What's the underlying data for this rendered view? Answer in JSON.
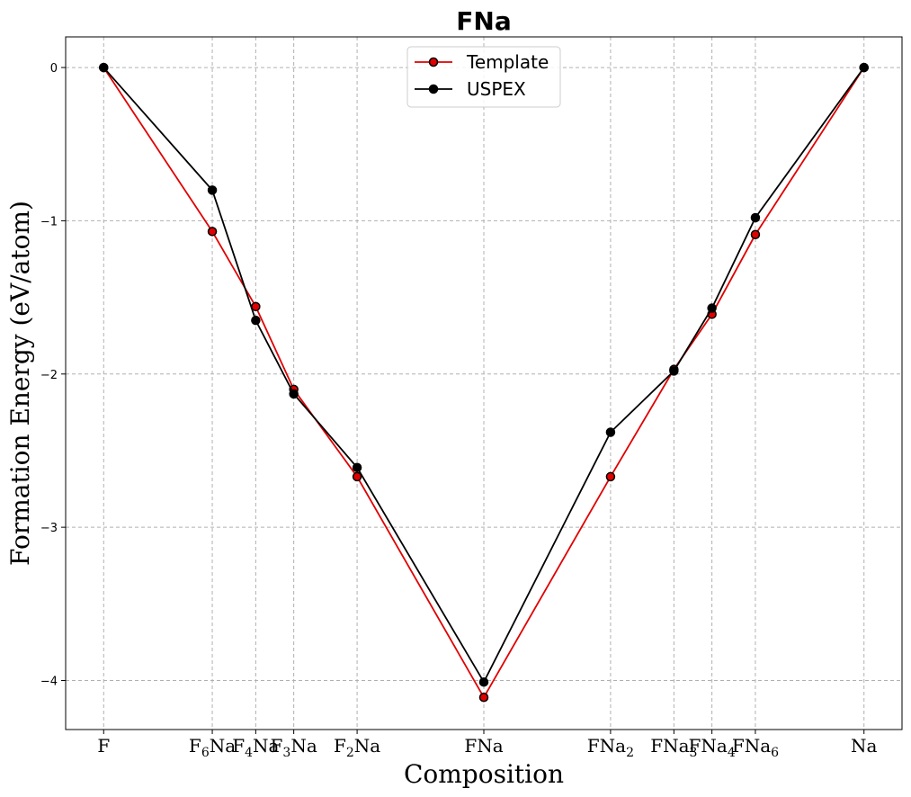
{
  "chart_data": {
    "type": "line",
    "title": "FNa",
    "xlabel": "Composition",
    "ylabel": "Formation Energy (eV/atom)",
    "x": [
      0,
      0.142857,
      0.2,
      0.25,
      0.333333,
      0.5,
      0.666667,
      0.75,
      0.8,
      0.857143,
      1.0
    ],
    "categories": [
      {
        "base": "F",
        "sub": "",
        "tail": ""
      },
      {
        "base": "F",
        "sub": "6",
        "tail": "Na"
      },
      {
        "base": "F",
        "sub": "4",
        "tail": "Na"
      },
      {
        "base": "F",
        "sub": "3",
        "tail": "Na"
      },
      {
        "base": "F",
        "sub": "2",
        "tail": "Na"
      },
      {
        "base": "FNa",
        "sub": "",
        "tail": ""
      },
      {
        "base": "FNa",
        "sub": "2",
        "tail": ""
      },
      {
        "base": "FNa",
        "sub": "3",
        "tail": ""
      },
      {
        "base": "FNa",
        "sub": "4",
        "tail": ""
      },
      {
        "base": "FNa",
        "sub": "6",
        "tail": ""
      },
      {
        "base": "Na",
        "sub": "",
        "tail": ""
      }
    ],
    "xlim": [
      -0.05,
      1.05
    ],
    "ylim": [
      -4.32,
      0.2
    ],
    "yticks": [
      0,
      -1,
      -2,
      -3,
      -4
    ],
    "ytick_labels": [
      "0",
      "−1",
      "−2",
      "−3",
      "−4"
    ],
    "grid": true,
    "legend": "top-center",
    "series": [
      {
        "name": "Template",
        "color": "#e00000",
        "marker_face": "#e00000",
        "values": [
          0,
          -1.07,
          -1.56,
          -2.1,
          -2.67,
          -4.11,
          -2.67,
          -1.97,
          -1.61,
          -1.09,
          0
        ]
      },
      {
        "name": "USPEX",
        "color": "#000000",
        "marker_face": "#000000",
        "values": [
          0,
          -0.8,
          -1.65,
          -2.13,
          -2.61,
          -4.01,
          -2.38,
          -1.98,
          -1.57,
          -0.98,
          0
        ]
      }
    ]
  }
}
